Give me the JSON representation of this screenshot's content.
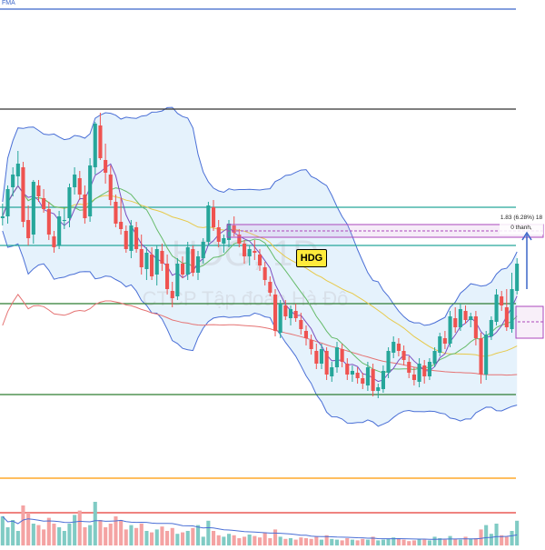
{
  "header": {
    "indicator_label": "FMA"
  },
  "symbol_badge": "HDG",
  "watermark": {
    "symbol": "HDG, 1D",
    "company": "CTCP Tập đoàn Hà Đô"
  },
  "measure_tool": {
    "change_text": "1.83 (6.28%) 18",
    "bars_text": "0 thanh,"
  },
  "colors": {
    "up": "#26a69a",
    "down": "#ef5350",
    "vol_up": "#80cbc4",
    "vol_down": "#f4a3a3",
    "bb_line": "#4a6fd6",
    "bb_fill": "#dceefb",
    "ma_short": "#7b4fbf",
    "ma_mid": "#66bb6a",
    "ma_long": "#e7c94a",
    "ma_200": "#e57373",
    "hline_blue": "#3b66c9",
    "hline_dark": "#333333",
    "hline_teal": "#26a69a",
    "hline_green": "#2e7d32",
    "hline_orange": "#ff9800",
    "hline_red": "#e53935",
    "badge_bg": "#ffeb3b"
  },
  "chart_data": {
    "type": "candlestick",
    "title": "HDG, 1D",
    "price_range": [
      15.5,
      45.5
    ],
    "volume_max": 100,
    "horizontal_levels": [
      {
        "price": 45.0,
        "color": "hline_blue"
      },
      {
        "price": 39.5,
        "color": "hline_dark"
      },
      {
        "price": 34.1,
        "color": "hline_teal"
      },
      {
        "price": 32.0,
        "color": "hline_teal"
      },
      {
        "price": 28.8,
        "color": "hline_green"
      },
      {
        "price": 23.8,
        "color": "hline_green"
      },
      {
        "price": 19.2,
        "color": "hline_orange"
      }
    ],
    "volume_level": 45,
    "candles": [
      [
        33.5,
        34.3,
        33.1,
        33.6
      ],
      [
        33.6,
        35.3,
        33.2,
        35.1
      ],
      [
        35.2,
        36.3,
        34.7,
        35.9
      ],
      [
        35.8,
        37.2,
        35.3,
        36.5
      ],
      [
        36.3,
        36.6,
        33.0,
        33.3
      ],
      [
        33.4,
        34.2,
        32.0,
        32.4
      ],
      [
        32.6,
        35.6,
        32.1,
        35.5
      ],
      [
        35.3,
        35.6,
        34.4,
        34.7
      ],
      [
        34.6,
        35.1,
        33.8,
        34.0
      ],
      [
        34.0,
        34.4,
        32.3,
        32.6
      ],
      [
        32.5,
        32.8,
        31.6,
        31.9
      ],
      [
        32.0,
        33.9,
        31.8,
        33.6
      ],
      [
        33.4,
        34.1,
        32.9,
        33.4
      ],
      [
        33.5,
        35.4,
        33.0,
        35.2
      ],
      [
        35.2,
        36.3,
        34.8,
        35.9
      ],
      [
        35.7,
        36.1,
        34.5,
        34.8
      ],
      [
        34.8,
        35.3,
        33.2,
        33.5
      ],
      [
        33.6,
        36.8,
        33.3,
        36.4
      ],
      [
        36.3,
        38.8,
        35.9,
        38.7
      ],
      [
        38.6,
        39.3,
        36.7,
        36.8
      ],
      [
        36.7,
        37.6,
        35.4,
        36.0
      ],
      [
        35.9,
        36.4,
        34.2,
        34.5
      ],
      [
        34.4,
        34.8,
        33.0,
        33.2
      ],
      [
        33.3,
        34.6,
        32.6,
        32.9
      ],
      [
        32.8,
        33.1,
        31.6,
        31.8
      ],
      [
        31.7,
        33.4,
        31.3,
        33.1
      ],
      [
        33.0,
        33.3,
        31.6,
        31.8
      ],
      [
        31.8,
        32.6,
        30.4,
        30.8
      ],
      [
        30.7,
        31.9,
        30.1,
        31.6
      ],
      [
        31.5,
        31.9,
        30.1,
        30.3
      ],
      [
        30.4,
        32.0,
        29.8,
        31.8
      ],
      [
        31.7,
        32.1,
        30.6,
        31.0
      ],
      [
        31.0,
        31.5,
        29.3,
        29.6
      ],
      [
        29.5,
        30.0,
        28.6,
        29.1
      ],
      [
        29.2,
        31.3,
        29.0,
        31.0
      ],
      [
        31.0,
        31.4,
        30.2,
        30.4
      ],
      [
        30.4,
        32.2,
        30.1,
        31.9
      ],
      [
        31.8,
        32.0,
        30.3,
        30.5
      ],
      [
        30.5,
        31.7,
        30.1,
        31.4
      ],
      [
        31.3,
        32.4,
        31.0,
        32.2
      ],
      [
        32.2,
        34.4,
        32.0,
        34.2
      ],
      [
        34.1,
        34.5,
        32.8,
        33.0
      ],
      [
        33.0,
        33.4,
        31.9,
        32.2
      ],
      [
        32.1,
        32.6,
        31.6,
        32.4
      ],
      [
        32.3,
        33.4,
        31.9,
        33.2
      ],
      [
        33.1,
        33.6,
        32.5,
        32.7
      ],
      [
        32.6,
        32.9,
        31.9,
        32.1
      ],
      [
        32.1,
        32.3,
        31.0,
        31.4
      ],
      [
        31.4,
        32.0,
        30.9,
        31.8
      ],
      [
        31.7,
        32.3,
        31.2,
        31.6
      ],
      [
        31.5,
        31.8,
        30.6,
        30.9
      ],
      [
        30.8,
        31.1,
        29.8,
        30.1
      ],
      [
        30.0,
        30.3,
        29.2,
        29.4
      ],
      [
        29.3,
        29.6,
        27.0,
        27.3
      ],
      [
        27.2,
        29.0,
        26.9,
        28.8
      ],
      [
        28.7,
        29.0,
        27.9,
        28.1
      ],
      [
        28.0,
        28.7,
        27.6,
        28.5
      ],
      [
        28.4,
        28.8,
        27.8,
        28.0
      ],
      [
        27.9,
        28.3,
        27.1,
        27.4
      ],
      [
        27.3,
        27.6,
        26.5,
        26.9
      ],
      [
        26.8,
        27.1,
        26.0,
        26.3
      ],
      [
        26.2,
        26.6,
        25.2,
        25.5
      ],
      [
        25.5,
        26.6,
        25.2,
        26.3
      ],
      [
        26.2,
        26.4,
        24.6,
        24.9
      ],
      [
        24.8,
        25.6,
        24.5,
        25.3
      ],
      [
        25.3,
        26.7,
        25.0,
        26.4
      ],
      [
        26.3,
        26.6,
        25.3,
        25.6
      ],
      [
        25.5,
        25.8,
        24.6,
        24.9
      ],
      [
        24.9,
        25.4,
        24.5,
        25.1
      ],
      [
        25.0,
        25.3,
        24.4,
        24.7
      ],
      [
        24.7,
        25.0,
        24.1,
        24.4
      ],
      [
        24.3,
        25.6,
        24.0,
        25.3
      ],
      [
        25.2,
        25.5,
        23.7,
        24.0
      ],
      [
        24.0,
        24.4,
        23.6,
        24.2
      ],
      [
        24.1,
        25.4,
        23.9,
        25.1
      ],
      [
        25.0,
        26.4,
        24.7,
        26.2
      ],
      [
        26.1,
        27.0,
        25.8,
        26.7
      ],
      [
        26.6,
        26.9,
        25.9,
        26.2
      ],
      [
        26.2,
        26.5,
        25.4,
        25.7
      ],
      [
        25.6,
        25.9,
        24.7,
        25.0
      ],
      [
        24.9,
        25.3,
        24.3,
        24.6
      ],
      [
        24.5,
        25.8,
        24.2,
        25.5
      ],
      [
        25.4,
        25.7,
        24.4,
        24.8
      ],
      [
        24.8,
        25.8,
        24.6,
        25.6
      ],
      [
        25.5,
        26.4,
        25.3,
        26.2
      ],
      [
        26.1,
        27.2,
        25.9,
        27.0
      ],
      [
        26.9,
        27.3,
        26.3,
        26.6
      ],
      [
        26.6,
        28.4,
        26.4,
        28.1
      ],
      [
        28.0,
        28.6,
        27.2,
        27.5
      ],
      [
        27.5,
        28.8,
        27.3,
        28.5
      ],
      [
        28.4,
        28.7,
        27.7,
        27.9
      ],
      [
        27.9,
        28.3,
        27.5,
        28.1
      ],
      [
        28.1,
        28.4,
        26.5,
        26.9
      ],
      [
        26.9,
        27.2,
        24.4,
        24.9
      ],
      [
        24.9,
        27.3,
        24.6,
        27.1
      ],
      [
        27.0,
        28.1,
        26.8,
        27.9
      ],
      [
        27.8,
        29.6,
        27.6,
        29.3
      ],
      [
        29.2,
        29.5,
        28.4,
        28.7
      ],
      [
        28.6,
        29.6,
        27.3,
        27.5
      ],
      [
        27.4,
        30.5,
        27.2,
        29.6
      ],
      [
        29.5,
        31.3,
        29.3,
        31.0
      ]
    ],
    "volumes": [
      40,
      25,
      35,
      20,
      55,
      45,
      30,
      28,
      22,
      38,
      30,
      25,
      20,
      30,
      42,
      48,
      25,
      28,
      60,
      35,
      25,
      30,
      40,
      35,
      22,
      28,
      24,
      30,
      20,
      18,
      22,
      26,
      20,
      24,
      16,
      18,
      20,
      24,
      28,
      12,
      34,
      20,
      14,
      12,
      16,
      14,
      10,
      12,
      15,
      13,
      11,
      18,
      10,
      22,
      12,
      9,
      10,
      8,
      11,
      10,
      9,
      12,
      8,
      14,
      9,
      8,
      7,
      10,
      8,
      7,
      9,
      8,
      12,
      7,
      8,
      9,
      11,
      10,
      8,
      6,
      7,
      9,
      8,
      7,
      12,
      10,
      8,
      13,
      9,
      8,
      12,
      9,
      10,
      22,
      28,
      16,
      30,
      14,
      12,
      20,
      34
    ]
  }
}
